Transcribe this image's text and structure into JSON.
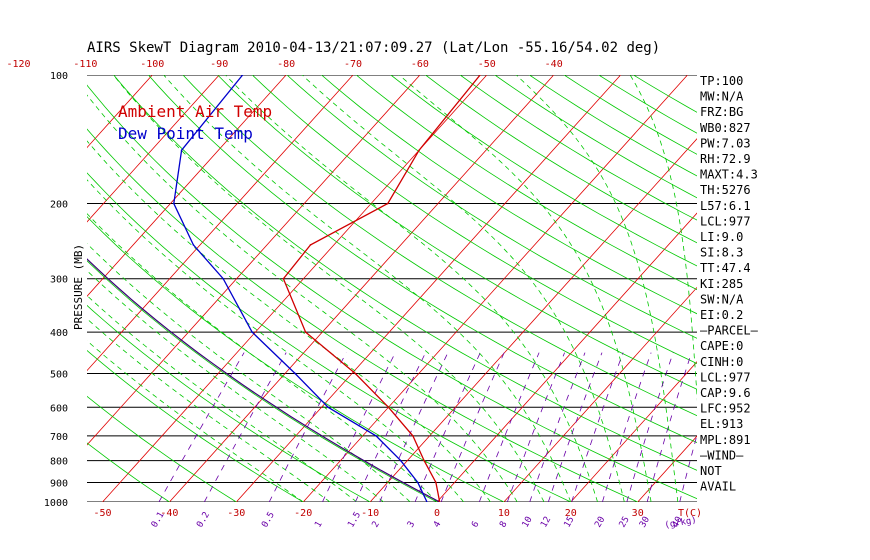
{
  "chart_data": {
    "type": "line",
    "title": "AIRS SkewT Diagram 2010-04-13/21:07:09.27 (Lat/Lon -55.16/54.02 deg)",
    "ylabel": "PRESSURE (MB)",
    "y_scale": "log",
    "ylim": [
      1000,
      100
    ],
    "pressure_ticks": [
      100,
      200,
      300,
      400,
      500,
      600,
      700,
      800,
      900,
      1000
    ],
    "top_ticks": [
      -120,
      -110,
      -100,
      -90,
      -80,
      -70,
      -60,
      -50,
      -40
    ],
    "bottom_ticks": [
      -50,
      -40,
      -30,
      -20,
      -10,
      0,
      10,
      20,
      30
    ],
    "bottom_unit": "T(C)",
    "mixing_ratio_labels": [
      "0.1",
      "0.2",
      "0.5",
      "1",
      "1.5",
      "2",
      "3",
      "4",
      "6",
      "8",
      "10",
      "12",
      "15",
      "20",
      "25",
      "30",
      "40"
    ],
    "mixing_ratio_unit": "(g/kg)",
    "series": [
      {
        "name": "Ambient Air Temp",
        "color": "#d00000",
        "points": [
          {
            "p": 1000,
            "t": 0.4
          },
          {
            "p": 900,
            "t": -2.8
          },
          {
            "p": 800,
            "t": -7.5
          },
          {
            "p": 700,
            "t": -12.5
          },
          {
            "p": 600,
            "t": -20.0
          },
          {
            "p": 500,
            "t": -29.5
          },
          {
            "p": 400,
            "t": -42.5
          },
          {
            "p": 300,
            "t": -53.0
          },
          {
            "p": 250,
            "t": -53.5
          },
          {
            "p": 200,
            "t": -47.5
          },
          {
            "p": 150,
            "t": -50.0
          },
          {
            "p": 100,
            "t": -51.0
          }
        ]
      },
      {
        "name": "Dew Point Temp",
        "color": "#0000cc",
        "points": [
          {
            "p": 1000,
            "t": -1.5
          },
          {
            "p": 900,
            "t": -5.5
          },
          {
            "p": 800,
            "t": -11.0
          },
          {
            "p": 700,
            "t": -18.0
          },
          {
            "p": 600,
            "t": -29.0
          },
          {
            "p": 500,
            "t": -38.5
          },
          {
            "p": 400,
            "t": -50.5
          },
          {
            "p": 300,
            "t": -62.0
          },
          {
            "p": 250,
            "t": -71.0
          },
          {
            "p": 200,
            "t": -79.5
          },
          {
            "p": 150,
            "t": -85.5
          },
          {
            "p": 100,
            "t": -86.5
          }
        ]
      }
    ],
    "indices": [
      "TP:100",
      "MW:N/A",
      "FRZ:BG",
      "WB0:827",
      "PW:7.03",
      "RH:72.9",
      "MAXT:4.3",
      "TH:5276",
      "L57:6.1",
      "LCL:977",
      "LI:9.0",
      "SI:8.3",
      "TT:47.4",
      "KI:285",
      "SW:N/A",
      "EI:0.2",
      "–PARCEL–",
      "CAPE:0",
      "CINH:0",
      "LCL:977",
      "CAP:9.6",
      "LFC:952",
      "EL:913",
      "MPL:891",
      "–WIND–",
      "NOT",
      "AVAIL"
    ],
    "grid": true,
    "legend_position": "top-left",
    "colors": {
      "isotherm": "#e00000",
      "dry_adiabat": "#00c800",
      "moist_adiabat": "#00c800",
      "mixing_ratio": "#6a00a8",
      "isobar": "#000000",
      "temperature": "#d00000",
      "dewpoint": "#0000cc",
      "parcel": "#3c0078"
    }
  }
}
